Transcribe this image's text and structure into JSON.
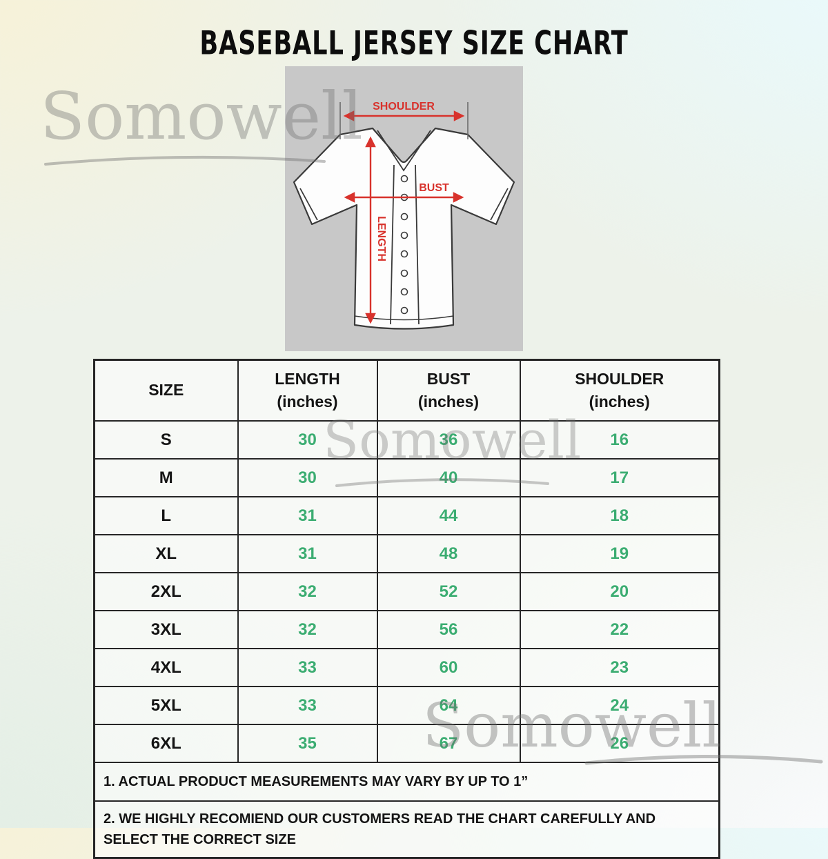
{
  "title": "BASEBALL JERSEY SIZE CHART",
  "watermark": {
    "text": "Somowell"
  },
  "diagram": {
    "shoulder_label": "SHOULDER",
    "bust_label": "BUST",
    "length_label": "LENGTH"
  },
  "chart_data": {
    "type": "table",
    "title": "BASEBALL JERSEY SIZE CHART",
    "columns": [
      {
        "name": "SIZE",
        "unit": ""
      },
      {
        "name": "LENGTH",
        "unit": "(inches)"
      },
      {
        "name": "BUST",
        "unit": "(inches)"
      },
      {
        "name": "SHOULDER",
        "unit": "(inches)"
      }
    ],
    "rows": [
      {
        "size": "S",
        "length": 30,
        "bust": 36,
        "shoulder": 16
      },
      {
        "size": "M",
        "length": 30,
        "bust": 40,
        "shoulder": 17
      },
      {
        "size": "L",
        "length": 31,
        "bust": 44,
        "shoulder": 18
      },
      {
        "size": "XL",
        "length": 31,
        "bust": 48,
        "shoulder": 19
      },
      {
        "size": "2XL",
        "length": 32,
        "bust": 52,
        "shoulder": 20
      },
      {
        "size": "3XL",
        "length": 32,
        "bust": 56,
        "shoulder": 22
      },
      {
        "size": "4XL",
        "length": 33,
        "bust": 60,
        "shoulder": 23
      },
      {
        "size": "5XL",
        "length": 33,
        "bust": 64,
        "shoulder": 24
      },
      {
        "size": "6XL",
        "length": 35,
        "bust": 67,
        "shoulder": 26
      }
    ],
    "notes": [
      "1. ACTUAL PRODUCT MEASUREMENTS MAY VARY BY UP TO 1”",
      "2. WE HIGHLY RECOMIEND OUR CUSTOMERS READ THE CHART CAREFULLY AND SELECT THE CORRECT SIZE"
    ]
  },
  "colors": {
    "value_green": "#3cad72",
    "arrow_red": "#d8322c",
    "panel_gray": "#c8c8c8",
    "title_black": "#0d0d0d",
    "watermark_gray": "#6e6e6e"
  }
}
